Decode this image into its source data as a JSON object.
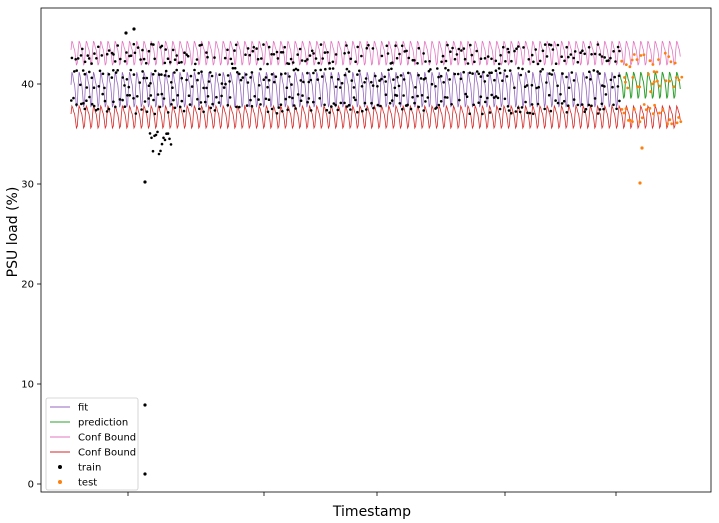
{
  "chart_data": {
    "type": "line",
    "xlabel": "Timestamp",
    "ylabel": "PSU load (%)",
    "ylim": [
      -0.8,
      47.6
    ],
    "yticks": [
      0,
      10,
      20,
      30,
      40
    ],
    "x_tick_count": 5,
    "x_tick_labels_shown": false,
    "grid": false,
    "legend_position": "lower-left",
    "series": [
      {
        "name": "fit",
        "kind": "line",
        "color": "#9467bd"
      },
      {
        "name": "prediction",
        "kind": "line",
        "color": "#2ca02c"
      },
      {
        "name": "Conf Bound",
        "kind": "line",
        "color": "#e377c2"
      },
      {
        "name": "Conf Bound",
        "kind": "line",
        "color": "#d62728"
      },
      {
        "name": "train",
        "kind": "scatter",
        "color": "#000000"
      },
      {
        "name": "test",
        "kind": "scatter",
        "color": "#ff7f0e"
      }
    ],
    "summary": {
      "fit_band": [
        37.5,
        41.5
      ],
      "upper_bound_band": [
        41.5,
        44.5
      ],
      "lower_bound_band": [
        35.5,
        38.0
      ],
      "train_outliers": [
        30.2,
        7.9,
        1.0,
        45.5
      ],
      "test_outliers": [
        30.1,
        33.6
      ],
      "train_dip_range": [
        32.8,
        35.3
      ]
    }
  }
}
